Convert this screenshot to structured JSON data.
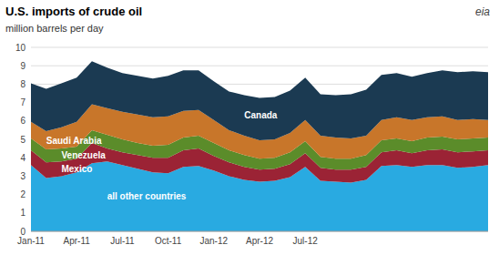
{
  "chart_data": {
    "type": "area",
    "stacked": true,
    "title": "U.S. imports of crude oil",
    "subtitle": "million barrels per day",
    "annotations": [
      "eia"
    ],
    "grid": true,
    "categories": [
      "Jan-11",
      null,
      null,
      "Apr-11",
      null,
      null,
      "Jul-11",
      null,
      null,
      "Oct-11",
      null,
      null,
      "Jan-12",
      null,
      null,
      "Apr-12",
      null,
      null,
      "Jul-12",
      null,
      null,
      null,
      null,
      null,
      null,
      null,
      null,
      null,
      null,
      null,
      null
    ],
    "ylim": [
      0,
      10
    ],
    "yticks": [
      0,
      1,
      2,
      3,
      4,
      5,
      6,
      7,
      8,
      9,
      10
    ],
    "series": [
      {
        "name": "all other countries",
        "color": "#29aae1",
        "values": [
          3.6,
          2.9,
          3.0,
          3.2,
          3.7,
          3.8,
          3.6,
          3.4,
          3.2,
          3.15,
          3.5,
          3.55,
          3.3,
          3.0,
          2.8,
          2.7,
          2.75,
          2.95,
          3.5,
          2.75,
          2.7,
          2.65,
          2.8,
          3.55,
          3.6,
          3.5,
          3.6,
          3.6,
          3.45,
          3.5,
          3.6
        ]
      },
      {
        "name": "Mexico",
        "color": "#9b2335",
        "values": [
          0.8,
          0.85,
          0.8,
          0.75,
          1.1,
          0.7,
          0.7,
          0.75,
          0.8,
          0.85,
          0.9,
          0.95,
          0.8,
          0.75,
          0.7,
          0.65,
          0.65,
          0.7,
          0.75,
          0.7,
          0.65,
          0.7,
          0.7,
          0.75,
          0.8,
          0.75,
          0.8,
          0.85,
          0.85,
          0.85,
          0.8
        ]
      },
      {
        "name": "Venezuela",
        "color": "#5b8c2a",
        "values": [
          0.65,
          0.7,
          0.7,
          0.65,
          0.7,
          0.75,
          0.7,
          0.65,
          0.65,
          0.7,
          0.7,
          0.7,
          0.7,
          0.65,
          0.65,
          0.6,
          0.6,
          0.65,
          0.65,
          0.6,
          0.6,
          0.6,
          0.65,
          0.65,
          0.65,
          0.65,
          0.7,
          0.7,
          0.7,
          0.7,
          0.7
        ]
      },
      {
        "name": "Saudi Arabia",
        "color": "#c8762a",
        "values": [
          0.9,
          1.0,
          1.15,
          1.35,
          1.4,
          1.45,
          1.5,
          1.55,
          1.55,
          1.55,
          1.45,
          1.4,
          1.25,
          1.1,
          1.05,
          1.0,
          1.0,
          1.05,
          1.15,
          1.15,
          1.15,
          1.1,
          1.05,
          1.1,
          1.15,
          1.15,
          1.1,
          1.1,
          1.05,
          1.05,
          0.95
        ]
      },
      {
        "name": "Canada",
        "color": "#1b3a52",
        "values": [
          2.1,
          2.3,
          2.4,
          2.4,
          2.35,
          2.2,
          2.1,
          2.1,
          2.1,
          2.2,
          2.2,
          2.15,
          2.1,
          2.1,
          2.2,
          2.3,
          2.3,
          2.3,
          2.3,
          2.25,
          2.3,
          2.4,
          2.5,
          2.45,
          2.4,
          2.35,
          2.4,
          2.5,
          2.6,
          2.6,
          2.6
        ]
      }
    ]
  }
}
